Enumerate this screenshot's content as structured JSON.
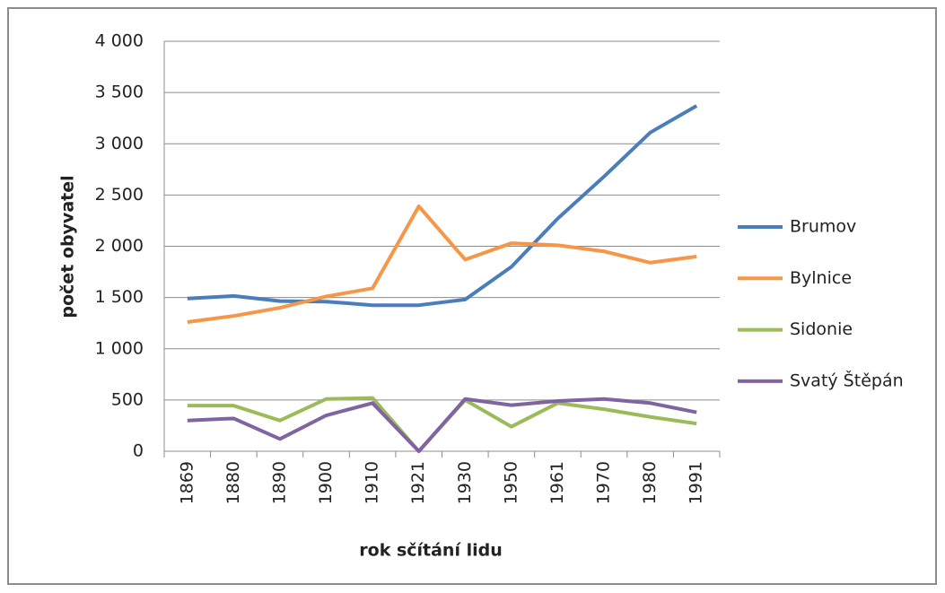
{
  "chart_data": {
    "type": "line",
    "y_label": "počet obyvatel",
    "x_label": "rok sčítání lidu",
    "categories": [
      "1869",
      "1880",
      "1890",
      "1900",
      "1910",
      "1921",
      "1930",
      "1950",
      "1961",
      "1970",
      "1980",
      "1991"
    ],
    "series": [
      {
        "name": "Brumov",
        "color": "#4a7ebb",
        "values": [
          1490,
          1515,
          1465,
          1460,
          1425,
          1425,
          1480,
          1800,
          2270,
          2680,
          3110,
          3370
        ]
      },
      {
        "name": "Bylnice",
        "color": "#f79646",
        "values": [
          1260,
          1320,
          1400,
          1510,
          1590,
          2390,
          1870,
          2030,
          2010,
          1950,
          1840,
          1900
        ]
      },
      {
        "name": "Sidonie",
        "color": "#9bbb59",
        "values": [
          445,
          445,
          300,
          510,
          520,
          0,
          500,
          240,
          470,
          410,
          335,
          270
        ]
      },
      {
        "name": "Svatý Štěpán",
        "color": "#8064a2",
        "values": [
          300,
          320,
          120,
          350,
          470,
          0,
          510,
          450,
          490,
          510,
          470,
          380
        ]
      }
    ],
    "ylim": [
      0,
      4000
    ],
    "yticks": [
      0,
      {
        "value": 500,
        "label": "500"
      },
      {
        "value": 1000,
        "label": "1 000"
      },
      {
        "value": 1500,
        "label": "1 500"
      },
      {
        "value": 2000,
        "label": "2 000"
      },
      {
        "value": 2500,
        "label": "2 500"
      },
      {
        "value": 3000,
        "label": "3 000"
      },
      {
        "value": 3500,
        "label": "3 500"
      },
      {
        "value": 4000,
        "label": "4 000"
      }
    ],
    "grid": true,
    "legend": "right"
  }
}
